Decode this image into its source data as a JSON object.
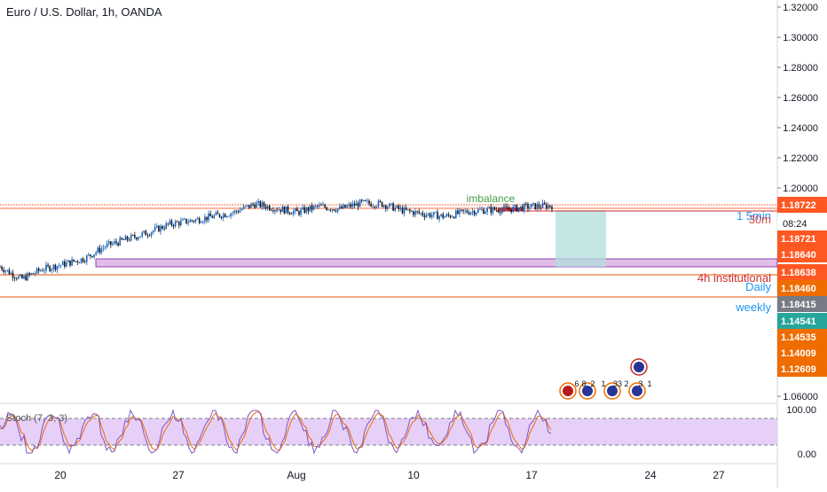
{
  "header": {
    "title": "Euro / U.S. Dollar, 1h, OANDA"
  },
  "colors": {
    "candle_up": "#1565c0",
    "candle_down": "#131722",
    "zone_fill": "#e1bee7",
    "zone_stroke": "#7b1fa2",
    "target_fill": "#b2dfdb",
    "orange_line": "#e65100",
    "stoch_fill": "#e1c4f5",
    "stoch_k": "#7e57c2",
    "stoch_d": "#ef6c00",
    "text_blue": "#2196f3",
    "text_red": "#d32f2f",
    "text_green": "#43a047"
  },
  "chart_data": {
    "type": "line",
    "title": "Euro / U.S. Dollar, 1h, OANDA",
    "price_axis": {
      "ticks": [
        "1.32000",
        "1.30000",
        "1.28000",
        "1.26000",
        "1.24000",
        "1.22000",
        "1.20000",
        "1.06000"
      ]
    },
    "time_axis": {
      "ticks": [
        "20",
        "27",
        "Aug",
        "10",
        "17",
        "24",
        "27"
      ]
    },
    "price_path": {
      "x_days": [
        0,
        1,
        2,
        3,
        4,
        5,
        6,
        7,
        8,
        9,
        10,
        11,
        12,
        13,
        14,
        15,
        16,
        17,
        18,
        19,
        20,
        21,
        22,
        23,
        24,
        25,
        26
      ],
      "y": [
        1.1815,
        1.18,
        1.1812,
        1.1818,
        1.1825,
        1.184,
        1.1848,
        1.1856,
        1.1866,
        1.187,
        1.1875,
        1.188,
        1.189,
        1.1885,
        1.188,
        1.1887,
        1.1884,
        1.1891,
        1.189,
        1.1882,
        1.1878,
        1.1875,
        1.1881,
        1.1883,
        1.1884,
        1.1887,
        1.1888
      ]
    },
    "levels": [
      {
        "label": "imbalance",
        "value": 1.18722,
        "price_text": "1.18722",
        "color": "#ff5722"
      },
      {
        "label": "1 5min",
        "value": 1.18721,
        "price_text": "1.18721",
        "color": "#ff5722"
      },
      {
        "label": "30m",
        "value": 1.1864,
        "price_text": "1.18640",
        "color": "#ff5722"
      },
      {
        "label": "",
        "value": 1.18638,
        "price_text": "1.18638",
        "color": "#ff5722"
      },
      {
        "label": "4h institutional",
        "value": 1.1846,
        "price_text": "1.18460",
        "color": "#ef6c00"
      },
      {
        "label": "Daily",
        "value": 1.18415,
        "price_text": "1.18415",
        "color": "#787b86"
      },
      {
        "label": "weekly",
        "value": 1.14541,
        "price_text": "1.14541",
        "color": "#26a69a"
      },
      {
        "label": "",
        "value": 1.14535,
        "price_text": "1.14535",
        "color": "#ef6c00"
      },
      {
        "label": "",
        "value": 1.14009,
        "price_text": "1.14009",
        "color": "#ef6c00"
      },
      {
        "label": "",
        "value": 1.12609,
        "price_text": "1.12609",
        "color": "#ef6c00"
      }
    ],
    "countdown": "08:24",
    "annotations": [
      "imbalance",
      "1 5min",
      "30m",
      "4h institutional",
      "Daily",
      "weekly"
    ],
    "stochastic": {
      "label": "Stoch (7, 3, 3)",
      "ticks": [
        "100.00",
        "0.00"
      ],
      "upper_band": 80,
      "lower_band": 20
    },
    "events": [
      "6",
      "8",
      "2",
      "1",
      "33",
      "2",
      "3",
      "1"
    ]
  }
}
